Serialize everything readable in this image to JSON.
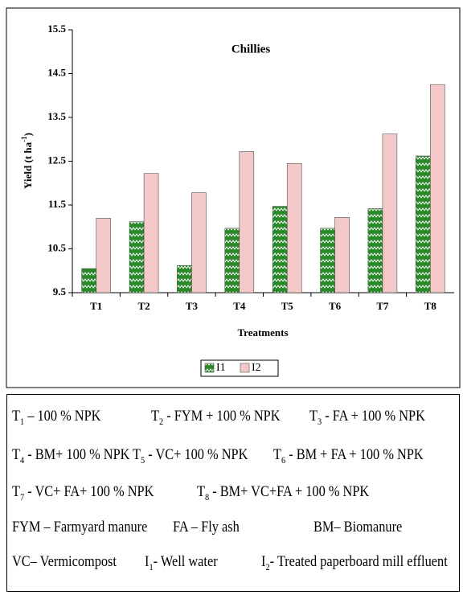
{
  "chart_data": {
    "type": "bar",
    "title": "Chillies",
    "y_label": {
      "text": "Yield (t ha",
      "sup": "-1",
      "close": ")"
    },
    "x_label": "Treatments",
    "categories": [
      "T1",
      "T2",
      "T3",
      "T4",
      "T5",
      "T6",
      "T7",
      "T8"
    ],
    "series": [
      {
        "name": "I1",
        "color": "#2a8a2a",
        "values": [
          10.05,
          11.12,
          10.12,
          10.97,
          11.47,
          10.97,
          11.42,
          12.62
        ]
      },
      {
        "name": "I2",
        "color": "#f3c8c8",
        "values": [
          11.2,
          12.22,
          11.78,
          12.72,
          12.45,
          11.22,
          13.12,
          14.25
        ]
      }
    ],
    "ylim": [
      9.5,
      15.5
    ],
    "yticks": [
      9.5,
      10.5,
      11.5,
      12.5,
      13.5,
      14.5,
      15.5
    ],
    "grid": false,
    "legend": "bottom"
  },
  "key": {
    "rows": [
      [
        {
          "main": "T",
          "sub": "1",
          "rest": " – 100 % NPK"
        },
        {
          "main": "T",
          "sub": "2",
          "rest": " - FYM + 100 % NPK"
        },
        {
          "main": "T",
          "sub": "3",
          "rest": " - FA + 100 % NPK"
        }
      ],
      [
        {
          "main": "T",
          "sub": "4",
          "rest": " - BM+ 100 % NPK"
        },
        {
          "main": "T",
          "sub": "5",
          "rest": " - VC+ 100 % NPK"
        },
        {
          "main": "T",
          "sub": "6",
          "rest": " - BM + FA + 100 % NPK"
        }
      ],
      [
        {
          "main": "T",
          "sub": "7",
          "rest": " - VC+ FA+ 100 % NPK"
        },
        {
          "main": "T",
          "sub": "8",
          "rest": " - BM+ VC+FA  + 100 % NPK"
        }
      ],
      [
        {
          "main": "FYM – Farmyard manure"
        },
        {
          "main": "FA – Fly ash"
        },
        {
          "main": "BM– Biomanure"
        }
      ],
      [
        {
          "main": "VC– Vermicompost"
        },
        {
          "main": "I",
          "sub": "1",
          "rest": "- Well water"
        },
        {
          "main": "I",
          "sub": "2",
          "rest": "- Treated paperboard mill effluent"
        }
      ]
    ]
  }
}
